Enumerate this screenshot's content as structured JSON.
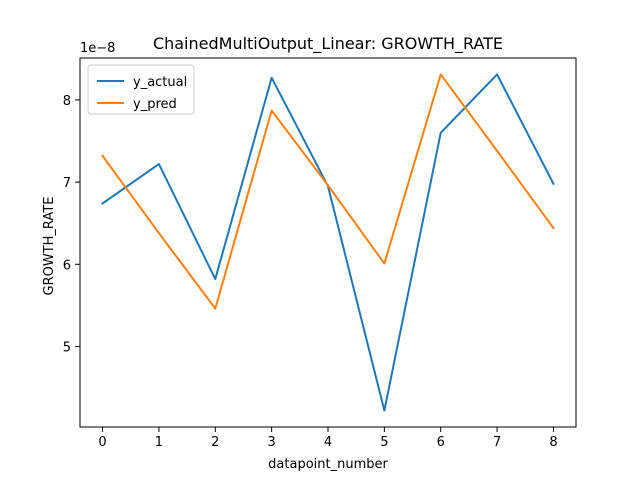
{
  "chart_data": {
    "type": "line",
    "title": "ChainedMultiOutput_Linear: GROWTH_RATE",
    "xlabel": "datapoint_number",
    "ylabel": "GROWTH_RATE",
    "y_offset_label": "1e−8",
    "x": [
      0,
      1,
      2,
      3,
      4,
      5,
      6,
      7,
      8
    ],
    "x_ticks": [
      0,
      1,
      2,
      3,
      4,
      5,
      6,
      7,
      8
    ],
    "x_tick_labels": [
      "0",
      "1",
      "2",
      "3",
      "4",
      "5",
      "6",
      "7",
      "8"
    ],
    "y_ticks": [
      5,
      6,
      7,
      8
    ],
    "y_tick_labels": [
      "5",
      "6",
      "7",
      "8"
    ],
    "xlim": [
      -0.4,
      8.4
    ],
    "ylim": [
      4.02,
      8.51
    ],
    "grid": false,
    "legend_position": "upper-left",
    "series": [
      {
        "name": "y_actual",
        "color": "#1f77b4",
        "values": [
          6.74,
          7.22,
          5.82,
          8.27,
          6.95,
          4.22,
          7.6,
          8.31,
          6.98
        ]
      },
      {
        "name": "y_pred",
        "color": "#ff7f0e",
        "values": [
          7.32,
          6.38,
          5.46,
          7.87,
          6.96,
          6.01,
          8.31,
          7.38,
          6.44
        ]
      }
    ]
  }
}
